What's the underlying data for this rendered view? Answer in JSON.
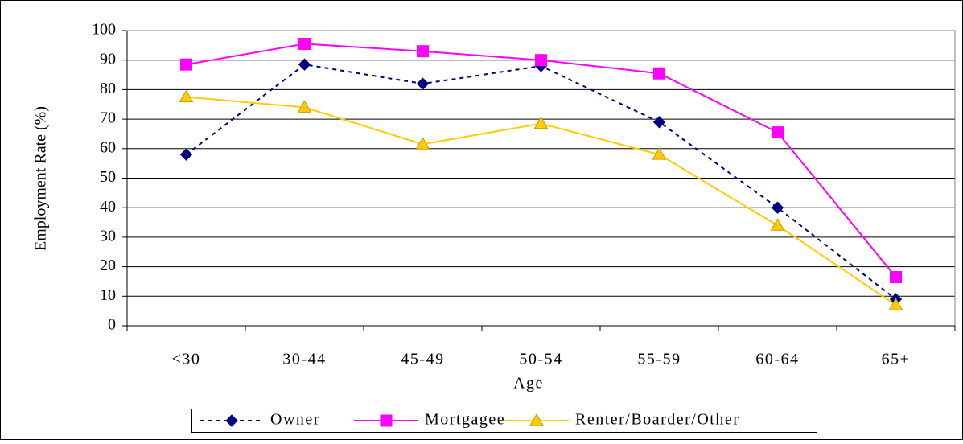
{
  "chart_data": {
    "type": "line",
    "x_label": "Age",
    "y_label": "Employment Rate (%)",
    "categories": [
      "<30",
      "30-44",
      "45-49",
      "50-54",
      "55-59",
      "60-64",
      "65+"
    ],
    "series": [
      {
        "name": "Owner",
        "color": "#000080",
        "marker": "diamond",
        "dashed": true,
        "values": [
          58,
          88.5,
          82,
          88,
          69,
          40,
          9
        ]
      },
      {
        "name": "Mortgagee",
        "color": "#FF00FF",
        "marker": "square",
        "dashed": false,
        "values": [
          88.5,
          95.5,
          93,
          90,
          85.5,
          65.5,
          16.5
        ]
      },
      {
        "name": "Renter/Boarder/Other",
        "color": "#FFCC00",
        "marker": "triangle",
        "dashed": false,
        "values": [
          77.5,
          74,
          61.5,
          68.5,
          58,
          34,
          7
        ]
      }
    ],
    "ylim": [
      0,
      100
    ],
    "yticks": [
      0,
      10,
      20,
      30,
      40,
      50,
      60,
      70,
      80,
      90,
      100
    ],
    "grid": true
  }
}
